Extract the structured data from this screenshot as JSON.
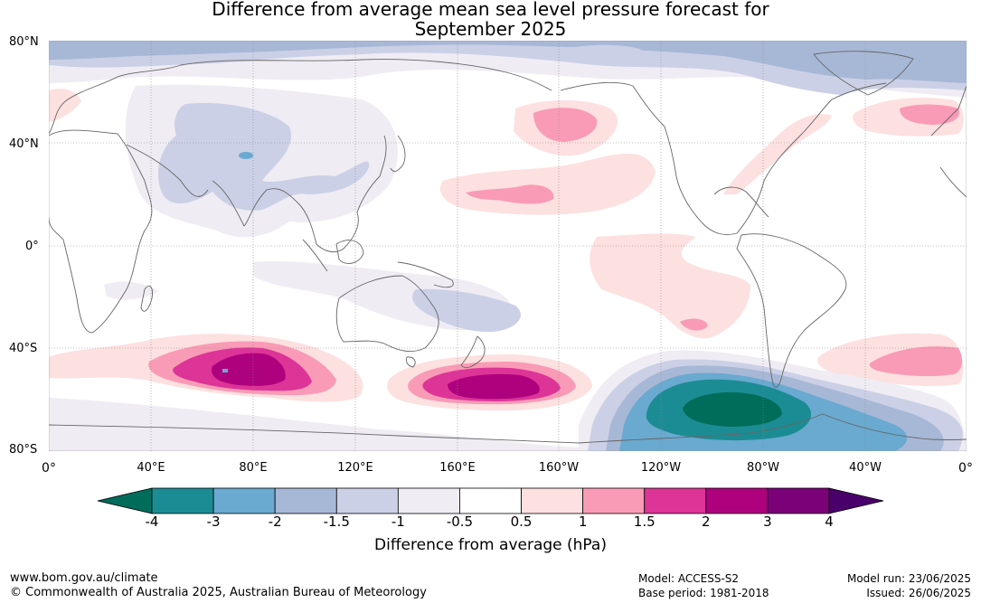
{
  "title_line1": "Difference from average mean sea level pressure forecast for",
  "title_line2": "September 2025",
  "lat_labels": [
    "80°N",
    "40°N",
    "0°",
    "40°S",
    "80°S"
  ],
  "lon_labels": [
    "0°",
    "40°E",
    "80°E",
    "120°E",
    "160°E",
    "160°W",
    "120°W",
    "80°W",
    "40°W",
    "0°"
  ],
  "colorbar": {
    "ticks": [
      "-4",
      "-3",
      "-2",
      "-1.5",
      "-1",
      "-0.5",
      "0.5",
      "1",
      "1.5",
      "2",
      "3",
      "4"
    ],
    "colors": [
      "#1c8c94",
      "#6aa9d0",
      "#a7b8d6",
      "#ccd0e6",
      "#efecf4",
      "#ffffff",
      "#fde0e0",
      "#f99bb6",
      "#dd3497",
      "#ae017e",
      "#7a0177"
    ],
    "low_extend_color": "#006d5b",
    "high_extend_color": "#49006a",
    "label": "Difference from average (hPa)"
  },
  "footer": {
    "site": "www.bom.gov.au/climate",
    "copyright": "© Commonwealth of Australia 2025, Australian Bureau of Meteorology",
    "model": "Model: ACCESS-S2",
    "base_period": "Base period: 1981-2018",
    "model_run": "Model run: 23/06/2025",
    "issued": "Issued: 26/06/2025"
  }
}
